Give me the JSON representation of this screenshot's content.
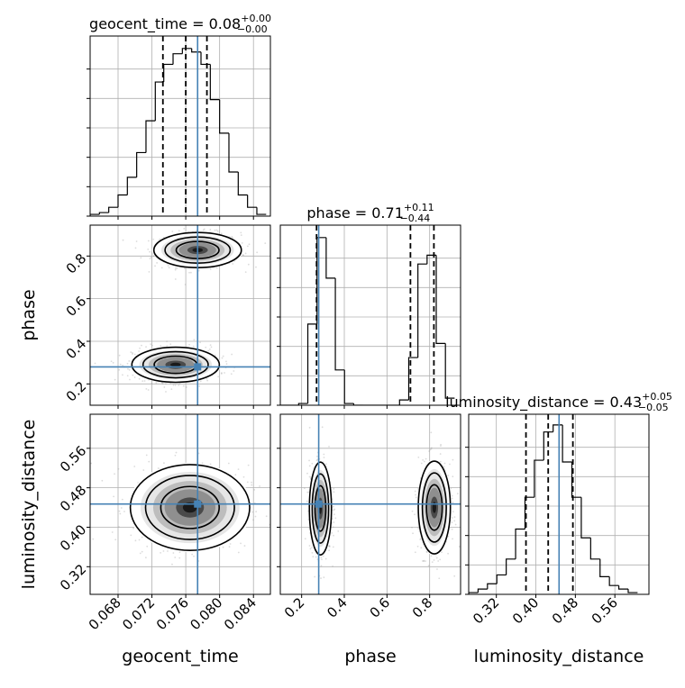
{
  "chart_data": {
    "type": "corner",
    "parameters": [
      "geocent_time",
      "phase",
      "luminosity_distance"
    ],
    "truths": {
      "geocent_time": 0.0774,
      "phase": 0.28,
      "luminosity_distance": 0.447
    },
    "axes": {
      "geocent_time": {
        "xlabel": "geocent_time",
        "lim": [
          0.0647,
          0.086
        ],
        "ticks": [
          "0.068",
          "0.072",
          "0.076",
          "0.080",
          "0.084"
        ]
      },
      "phase": {
        "xlabel": "phase",
        "ylabel": "phase",
        "lim": [
          0.1,
          0.945
        ],
        "ticks": [
          "0.2",
          "0.4",
          "0.6",
          "0.8"
        ]
      },
      "luminosity_distance": {
        "xlabel": "luminosity_distance",
        "ylabel": "luminosity_distance",
        "lim": [
          0.264,
          0.629
        ],
        "ticks": [
          "0.32",
          "0.40",
          "0.48",
          "0.56"
        ]
      }
    },
    "titles": [
      {
        "param": "geocent_time",
        "main": "geocent_time = 0.08",
        "plus": "+0.00",
        "minus": "−0.00"
      },
      {
        "param": "phase",
        "main": "phase = 0.71",
        "plus": "+0.11",
        "minus": "−0.44"
      },
      {
        "param": "luminosity_distance",
        "main": "luminosity_distance = 0.43",
        "plus": "+0.05",
        "minus": "−0.05"
      }
    ],
    "quantiles": {
      "geocent_time": [
        0.0733,
        0.076,
        0.0785
      ],
      "phase": [
        0.27,
        0.71,
        0.82
      ],
      "luminosity_distance": [
        0.38,
        0.425,
        0.475
      ]
    },
    "histograms": {
      "geocent_time": {
        "edges": [
          0.0647,
          0.0658,
          0.0669,
          0.068,
          0.0691,
          0.0702,
          0.0713,
          0.0724,
          0.0734,
          0.0745,
          0.0756,
          0.0767,
          0.0778,
          0.0789,
          0.08,
          0.0811,
          0.0822,
          0.0833,
          0.0844,
          0.0855
        ],
        "counts": [
          1,
          2,
          5,
          12,
          22,
          36,
          54,
          76,
          86,
          92,
          95,
          93,
          86,
          66,
          47,
          25,
          12,
          5,
          1
        ],
        "ymax": 100
      },
      "phase": {
        "edges": [
          0.1,
          0.143,
          0.186,
          0.229,
          0.272,
          0.315,
          0.358,
          0.401,
          0.444,
          0.487,
          0.53,
          0.573,
          0.616,
          0.659,
          0.702,
          0.745,
          0.788,
          0.831,
          0.874,
          0.917
        ],
        "counts": [
          0,
          0,
          1,
          46,
          95,
          72,
          20,
          1,
          0,
          0,
          0,
          0,
          0,
          3,
          27,
          80,
          85,
          35,
          4
        ],
        "ymax": 100
      },
      "luminosity_distance": {
        "edges": [
          0.264,
          0.283,
          0.302,
          0.321,
          0.34,
          0.359,
          0.378,
          0.397,
          0.416,
          0.435,
          0.454,
          0.473,
          0.492,
          0.511,
          0.53,
          0.549,
          0.568,
          0.587,
          0.606
        ],
        "counts": [
          1,
          3,
          6,
          11,
          20,
          37,
          55,
          76,
          92,
          96,
          75,
          55,
          32,
          20,
          10,
          5,
          3,
          1
        ],
        "ymax": 100
      }
    },
    "modes": {
      "phase_vs_geocent_time": [
        {
          "x": 0.0774,
          "y": 0.828,
          "sx": 0.0022,
          "sy": 0.035
        },
        {
          "x": 0.0748,
          "y": 0.29,
          "sx": 0.0022,
          "sy": 0.035
        }
      ],
      "luminosity_distance_vs_geocent_time": [
        {
          "x": 0.0765,
          "y": 0.44,
          "sx": 0.003,
          "sy": 0.037
        }
      ],
      "luminosity_distance_vs_phase": [
        {
          "x": 0.288,
          "y": 0.438,
          "sx": 0.022,
          "sy": 0.04
        },
        {
          "x": 0.822,
          "y": 0.44,
          "sx": 0.032,
          "sy": 0.04
        }
      ]
    },
    "grid": true,
    "colors": {
      "truth": "#4682b4",
      "line": "#000000",
      "scatter": "#9a9a9a",
      "grid": "#b0b0b0"
    }
  }
}
